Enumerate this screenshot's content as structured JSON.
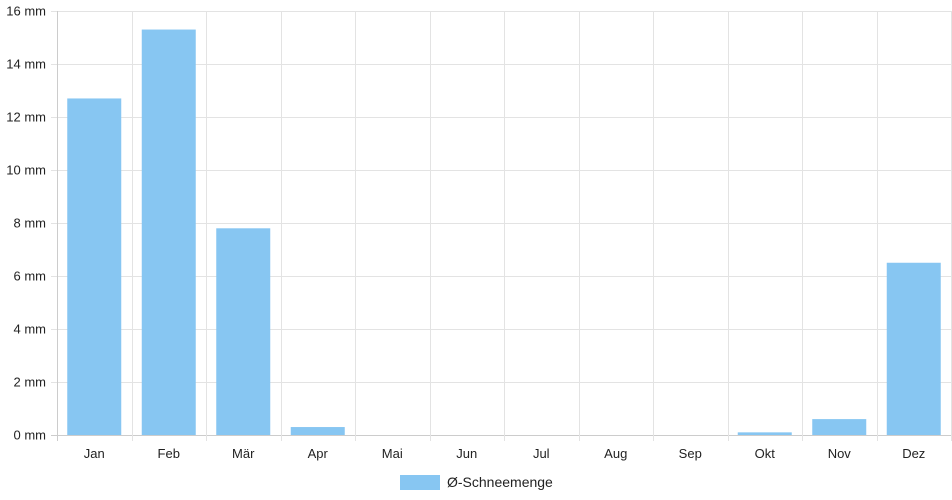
{
  "chart_data": {
    "type": "bar",
    "categories": [
      "Jan",
      "Feb",
      "Mär",
      "Apr",
      "Mai",
      "Jun",
      "Jul",
      "Aug",
      "Sep",
      "Okt",
      "Nov",
      "Dez"
    ],
    "series": [
      {
        "name": "Ø-Schneemenge",
        "values": [
          12.7,
          15.3,
          7.8,
          0.3,
          0,
          0,
          0,
          0,
          0,
          0.1,
          0.6,
          6.5
        ],
        "color": "#87c6f2"
      }
    ],
    "y_unit": "mm",
    "y_ticks": [
      "0 mm",
      "2 mm",
      "4 mm",
      "6 mm",
      "8 mm",
      "10 mm",
      "12 mm",
      "14 mm",
      "16 mm"
    ],
    "ylim": [
      0,
      16
    ],
    "grid": true,
    "legend_position": "bottom-center",
    "colors": {
      "grid": "#e3e3e3",
      "axis": "#cccccc"
    }
  }
}
